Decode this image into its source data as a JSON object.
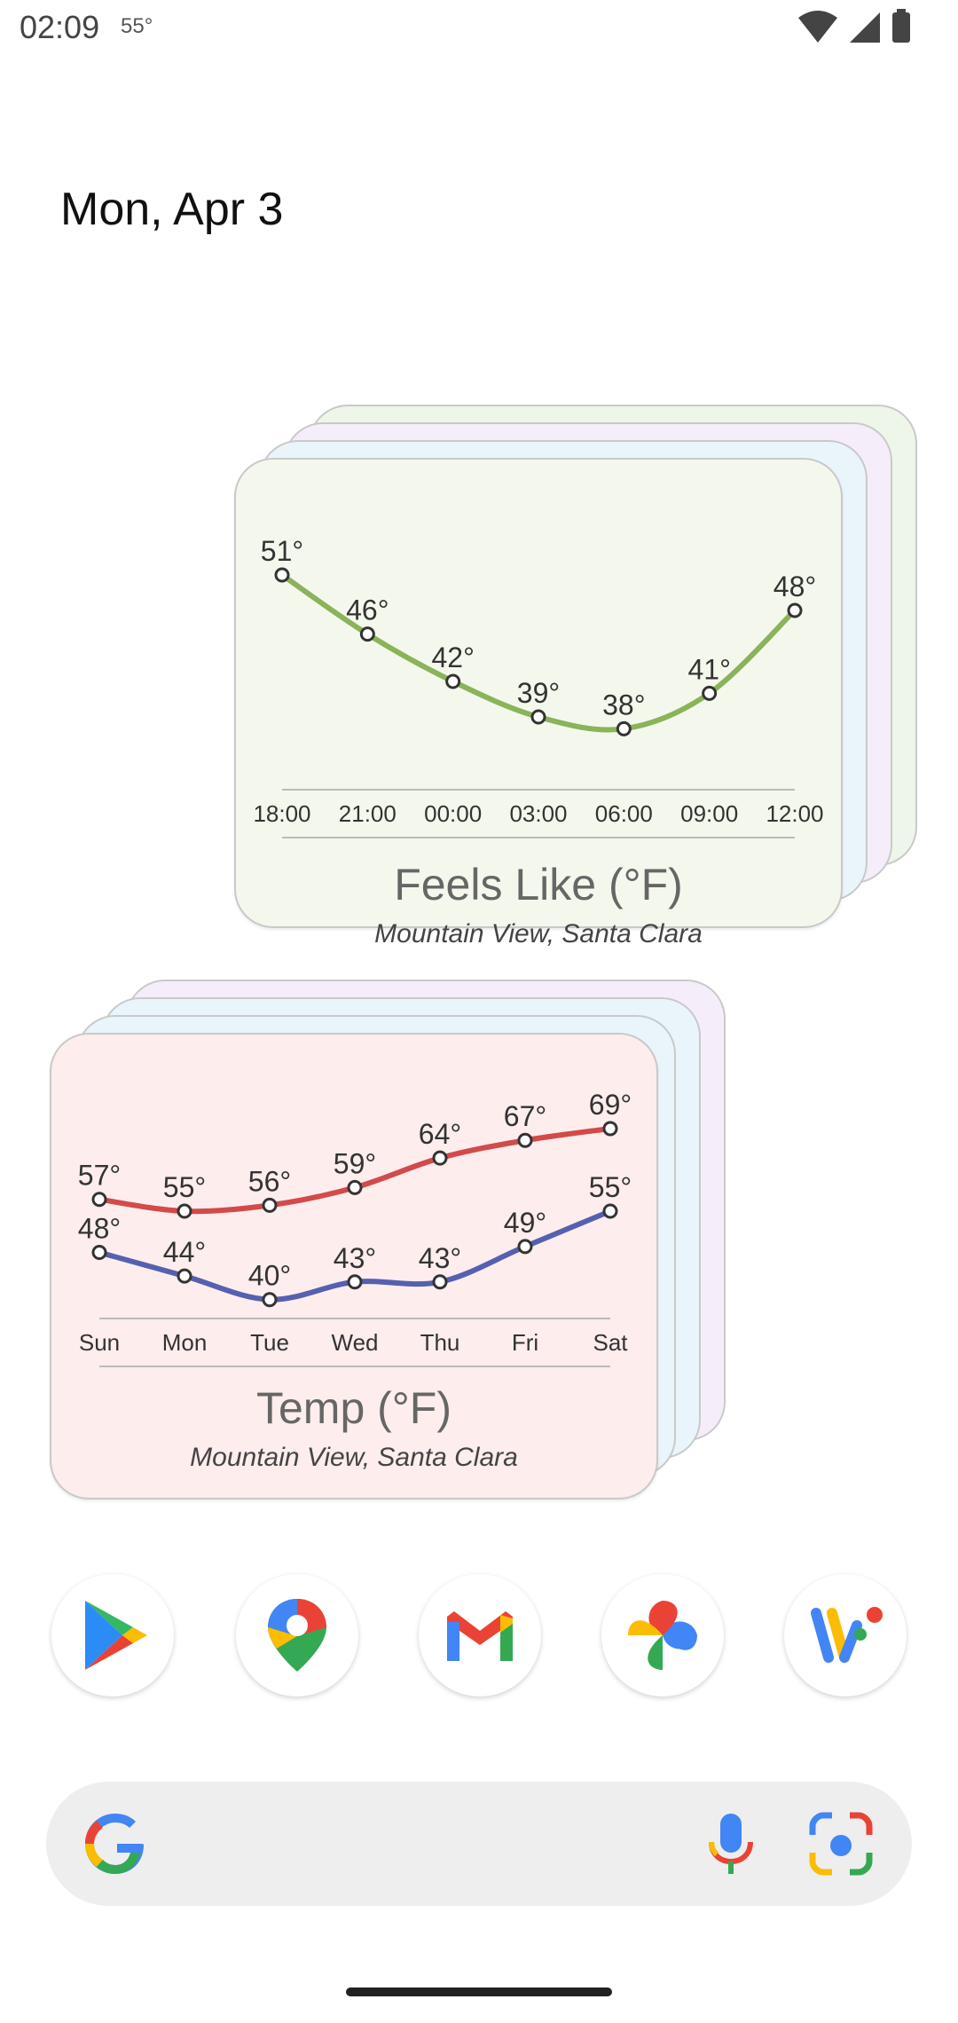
{
  "status_bar": {
    "time": "02:09",
    "temperature": "55°",
    "icons": [
      "wifi-icon",
      "cell-signal-icon",
      "battery-icon"
    ]
  },
  "date": "Mon, Apr 3",
  "feels_like_widget": {
    "title": "Feels Like (°F)",
    "location": "Mountain View, Santa Clara",
    "colors": {
      "card": "#f4f8ec",
      "line": "#8ab35a"
    },
    "chart_data": {
      "type": "line",
      "categories": [
        "18:00",
        "21:00",
        "00:00",
        "03:00",
        "06:00",
        "09:00",
        "12:00"
      ],
      "series": [
        {
          "values": [
            51,
            46,
            42,
            39,
            38,
            41,
            48
          ]
        }
      ],
      "value_labels": [
        "51°",
        "46°",
        "42°",
        "39°",
        "38°",
        "41°",
        "48°"
      ],
      "ylim": [
        36,
        54
      ]
    }
  },
  "temp_widget": {
    "title": "Temp (°F)",
    "location": "Mountain View, Santa Clara",
    "colors": {
      "card": "#fdeded",
      "high_line": "#d34a4a",
      "low_line": "#5660b0"
    },
    "chart_data": {
      "type": "line",
      "categories": [
        "Sun",
        "Mon",
        "Tue",
        "Wed",
        "Thu",
        "Fri",
        "Sat"
      ],
      "series": [
        {
          "values": [
            57,
            55,
            56,
            59,
            64,
            67,
            69
          ],
          "labels": [
            "57°",
            "55°",
            "56°",
            "59°",
            "64°",
            "67°",
            "69°"
          ]
        },
        {
          "values": [
            48,
            44,
            40,
            43,
            43,
            49,
            55
          ],
          "labels": [
            "48°",
            "44°",
            "40°",
            "43°",
            "43°",
            "49°",
            "55°"
          ]
        }
      ],
      "ylim": [
        38,
        72
      ]
    }
  },
  "dock": [
    {
      "name": "play-store-icon"
    },
    {
      "name": "maps-icon"
    },
    {
      "name": "gmail-icon"
    },
    {
      "name": "photos-icon"
    },
    {
      "name": "wallet-icon"
    }
  ],
  "search_bar": {
    "icons": [
      "google-logo-icon",
      "microphone-icon",
      "lens-camera-icon"
    ]
  }
}
